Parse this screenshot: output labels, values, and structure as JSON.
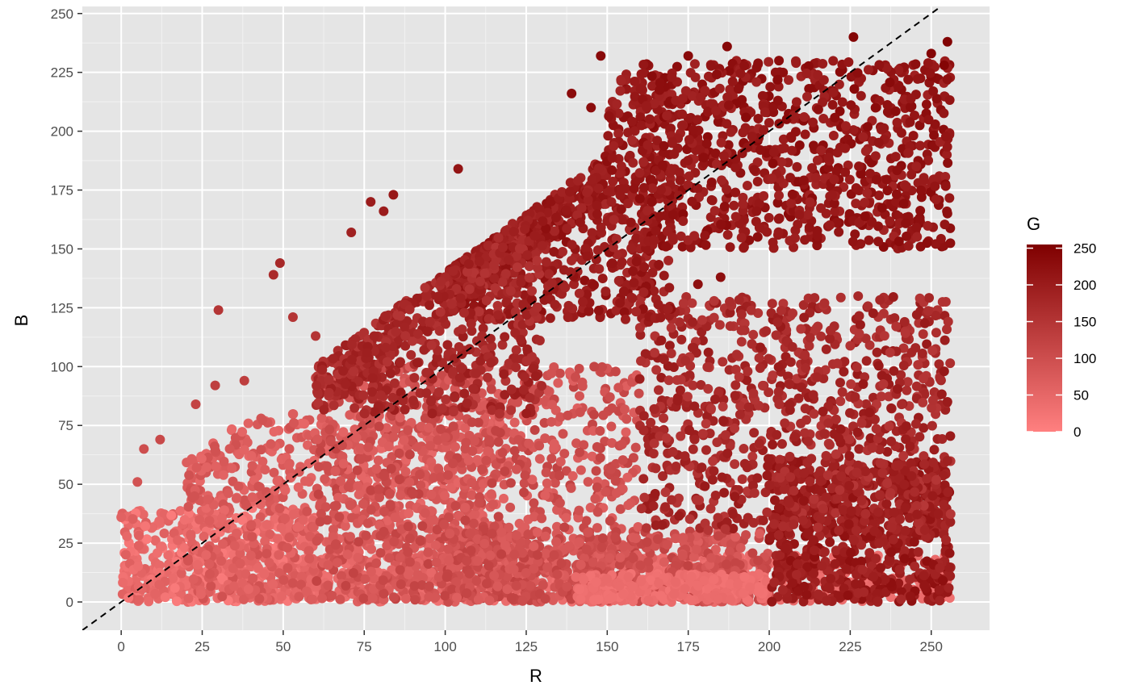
{
  "chart_data": {
    "type": "scatter",
    "title": "",
    "xlabel": "R",
    "ylabel": "B",
    "xlim": [
      -12,
      268
    ],
    "ylim": [
      -12,
      253
    ],
    "x_ticks": [
      "0",
      "25",
      "50",
      "75",
      "100",
      "125",
      "150",
      "175",
      "200",
      "225",
      "250"
    ],
    "y_ticks": [
      "0",
      "25",
      "50",
      "75",
      "100",
      "125",
      "150",
      "175",
      "200",
      "225",
      "250"
    ],
    "x_tick_values": [
      0,
      25,
      50,
      75,
      100,
      125,
      150,
      175,
      200,
      225,
      250
    ],
    "y_tick_values": [
      0,
      25,
      50,
      75,
      100,
      125,
      150,
      175,
      200,
      225,
      250
    ],
    "grid": true,
    "reference_line": {
      "slope": 1,
      "intercept": 0,
      "style": "dashed",
      "color": "#000000"
    },
    "color_scale": {
      "variable": "G",
      "min": 0,
      "max": 255,
      "low_color": "#ff8080",
      "high_color": "#7f0000",
      "ticks": [
        "0",
        "50",
        "100",
        "150",
        "200",
        "250"
      ],
      "tick_values": [
        0,
        50,
        100,
        150,
        200,
        250
      ]
    },
    "legend_position": "right",
    "points": [
      {
        "x": 30,
        "y": 124,
        "g": 150
      },
      {
        "x": 47,
        "y": 139,
        "g": 170
      },
      {
        "x": 49,
        "y": 144,
        "g": 175
      },
      {
        "x": 71,
        "y": 157,
        "g": 190
      },
      {
        "x": 77,
        "y": 170,
        "g": 200
      },
      {
        "x": 84,
        "y": 173,
        "g": 205
      },
      {
        "x": 81,
        "y": 166,
        "g": 200
      },
      {
        "x": 104,
        "y": 184,
        "g": 215
      },
      {
        "x": 187,
        "y": 236,
        "g": 240
      },
      {
        "x": 226,
        "y": 240,
        "g": 245
      },
      {
        "x": 175,
        "y": 232,
        "g": 235
      },
      {
        "x": 203,
        "y": 230,
        "g": 232
      },
      {
        "x": 148,
        "y": 232,
        "g": 235
      },
      {
        "x": 7,
        "y": 65,
        "g": 100
      },
      {
        "x": 12,
        "y": 69,
        "g": 110
      },
      {
        "x": 23,
        "y": 84,
        "g": 120
      },
      {
        "x": 29,
        "y": 92,
        "g": 130
      },
      {
        "x": 38,
        "y": 94,
        "g": 130
      },
      {
        "x": 53,
        "y": 121,
        "g": 150
      },
      {
        "x": 60,
        "y": 113,
        "g": 150
      },
      {
        "x": 5,
        "y": 51,
        "g": 90
      },
      {
        "x": 0,
        "y": 36,
        "g": 60
      },
      {
        "x": 255,
        "y": 238,
        "g": 250
      },
      {
        "x": 254,
        "y": 228,
        "g": 245
      },
      {
        "x": 250,
        "y": 233,
        "g": 245
      },
      {
        "x": 255,
        "y": 85,
        "g": 200
      },
      {
        "x": 255,
        "y": 60,
        "g": 190
      },
      {
        "x": 255,
        "y": 165,
        "g": 225
      },
      {
        "x": 254,
        "y": 98,
        "g": 210
      },
      {
        "x": 139,
        "y": 216,
        "g": 232
      },
      {
        "x": 178,
        "y": 135,
        "g": 225
      },
      {
        "x": 185,
        "y": 138,
        "g": 225
      },
      {
        "x": 145,
        "y": 210,
        "g": 230
      },
      {
        "x": 197,
        "y": 29,
        "g": 70
      },
      {
        "x": 242,
        "y": 40,
        "g": 200
      },
      {
        "x": 227,
        "y": 55,
        "g": 170
      }
    ]
  }
}
